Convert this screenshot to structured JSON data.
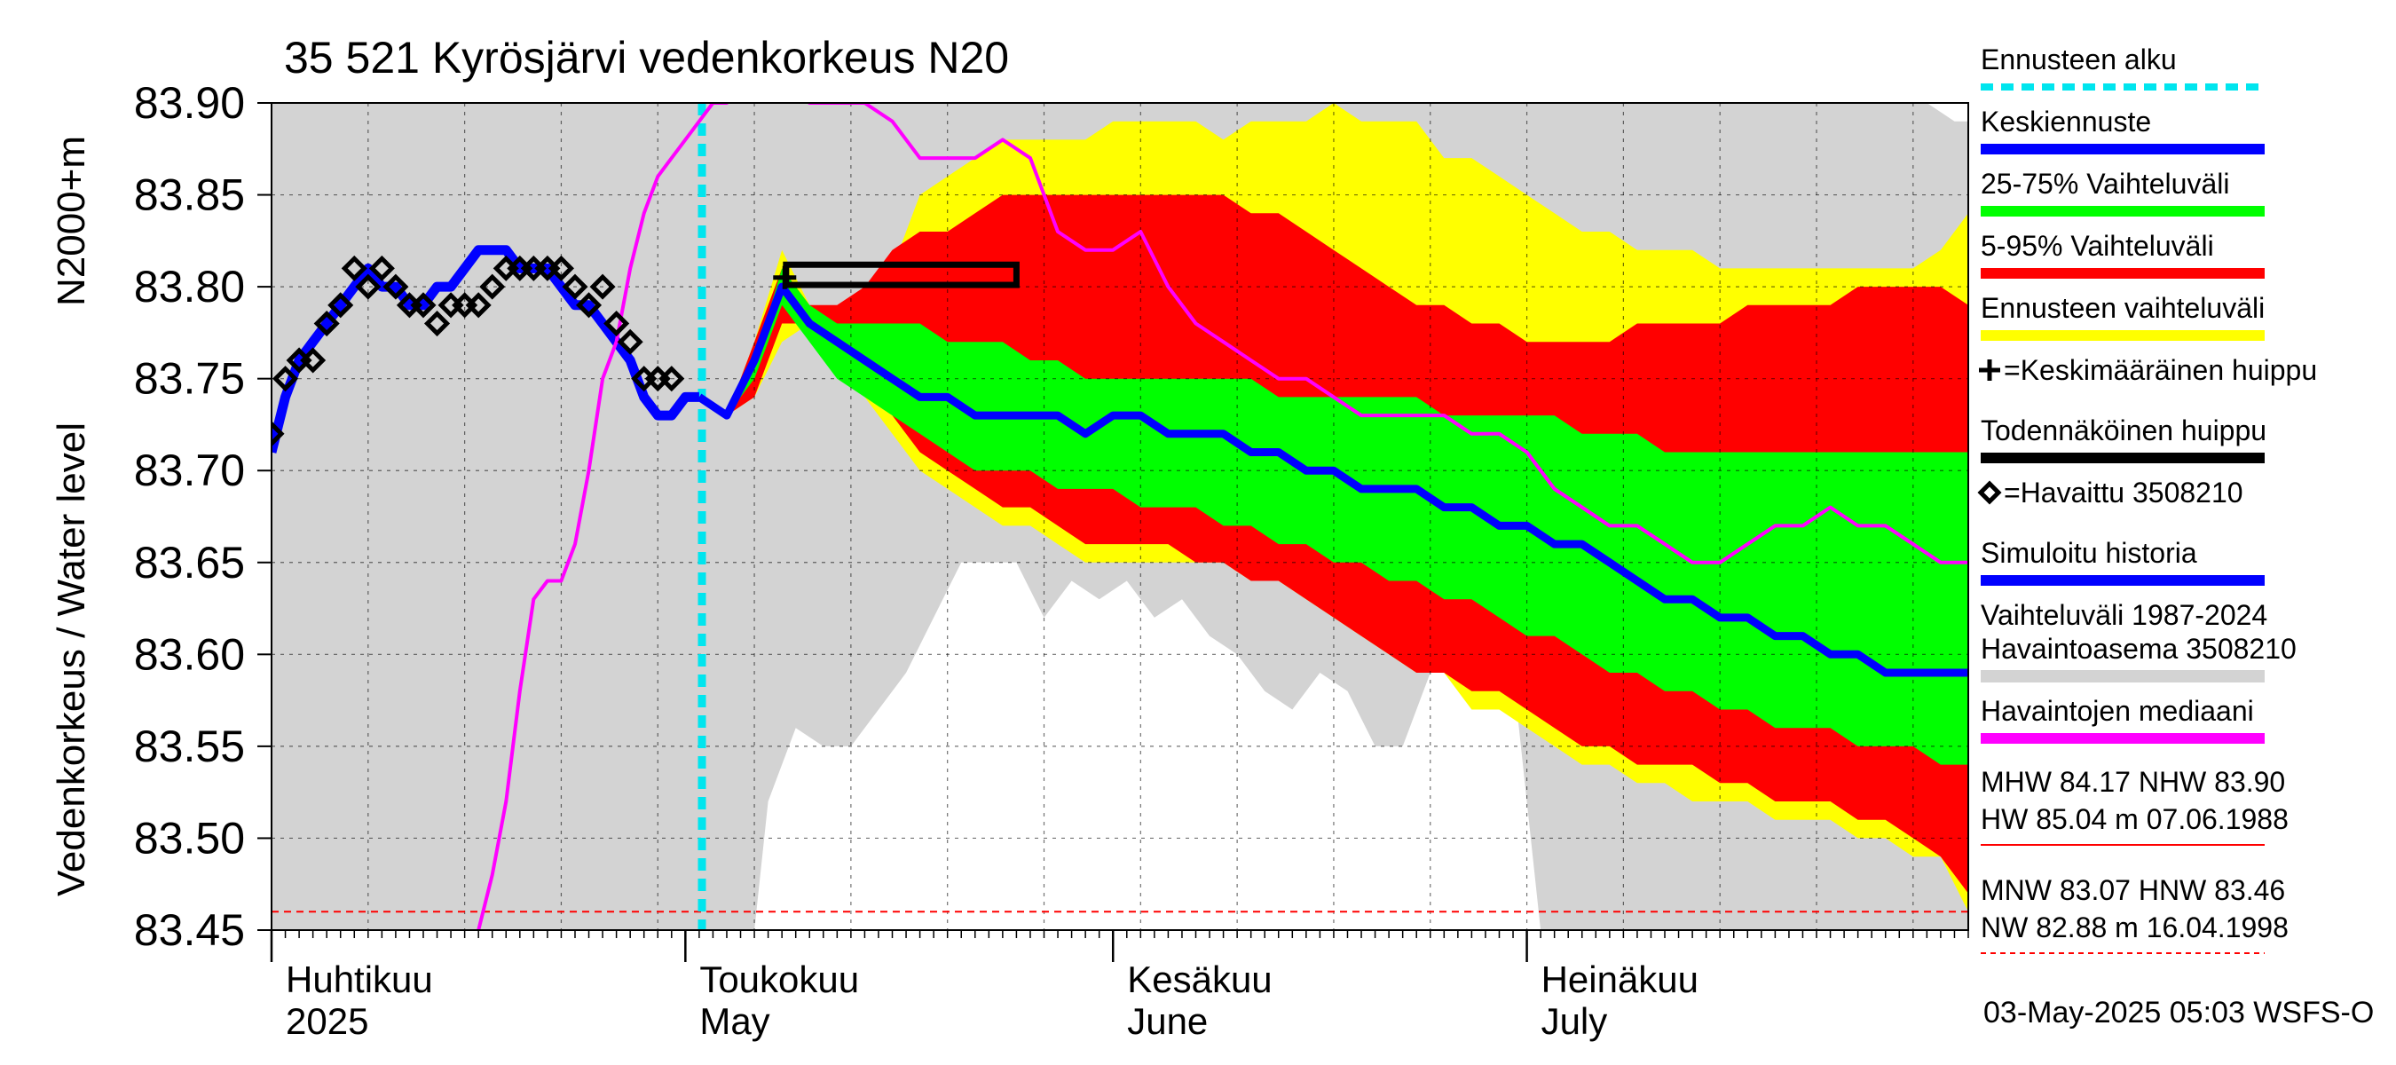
{
  "chart_data": {
    "type": "area",
    "title": "35 521 Kyrösjärvi vedenkorkeus N20",
    "ylabel": "Vedenkorkeus / Water level",
    "ylabel_unit": "N2000+m",
    "ylim": [
      83.45,
      83.9
    ],
    "y_ticks": [
      "83.45",
      "83.50",
      "83.55",
      "83.60",
      "83.65",
      "83.70",
      "83.75",
      "83.80",
      "83.85",
      "83.90"
    ],
    "x_range_days": [
      0,
      123
    ],
    "x_month_labels": [
      {
        "day": 0,
        "fi": "Huhtikuu",
        "en": "2025"
      },
      {
        "day": 30,
        "fi": "Toukokuu",
        "en": "May"
      },
      {
        "day": 61,
        "fi": "Kesäkuu",
        "en": "June"
      },
      {
        "day": 91,
        "fi": "Heinäkuu",
        "en": "July"
      }
    ],
    "forecast_start_day": 31.2,
    "footer": "03-May-2025 05:03 WSFS-O",
    "thresholds": {
      "nhw": 83.9,
      "hnw": 83.46
    },
    "legend": [
      {
        "label": "Ennusteen alku",
        "color": "#00e5ee",
        "style": "dashed"
      },
      {
        "label": "Keskiennuste",
        "color": "#0000ff",
        "style": "line"
      },
      {
        "label": "25-75% Vaihteluväli",
        "color": "#00ff00",
        "style": "line"
      },
      {
        "label": "5-95% Vaihteluväli",
        "color": "#ff0000",
        "style": "line"
      },
      {
        "label": "Ennusteen vaihteluväli",
        "color": "#ffff00",
        "style": "line"
      },
      {
        "label": "=Keskimääräinen huippu",
        "color": "#000000",
        "style": "plus"
      },
      {
        "label": "Todennäköinen huippu",
        "color": "#000000",
        "style": "line"
      },
      {
        "label": "=Havaittu 3508210",
        "color": "#000000",
        "style": "diamond"
      },
      {
        "label": "Simuloitu historia",
        "color": "#0000ff",
        "style": "line"
      },
      {
        "label": "Vaihteluväli 1987-2024\n Havaintoasema 3508210",
        "color": "#d3d3d3",
        "style": "line"
      },
      {
        "label": "Havaintojen mediaani",
        "color": "#ff00ff",
        "style": "line"
      }
    ],
    "stats": [
      {
        "text": "MHW  84.17 NHW  83.90\nHW  85.04 m 07.06.1988",
        "color": "#ff0000",
        "style": "solid"
      },
      {
        "text": "MNW  83.07 HNW  83.46\nNW  82.88 m 16.04.1998",
        "color": "#ff0000",
        "style": "dashed"
      }
    ],
    "history_band": {
      "x": [
        0,
        30,
        31,
        33,
        35,
        36,
        38,
        40,
        42,
        44,
        46,
        48,
        50,
        52,
        54,
        56,
        58,
        60,
        62,
        64,
        66,
        68,
        70,
        72,
        74,
        76,
        78,
        80,
        82,
        84,
        86,
        88,
        90,
        92,
        94,
        96,
        98,
        100,
        102,
        104,
        106,
        108,
        110,
        112,
        114,
        116,
        118,
        120,
        122,
        123
      ],
      "upper": [
        83.9,
        83.9,
        83.9,
        83.9,
        83.9,
        83.9,
        83.9,
        83.9,
        83.9,
        83.9,
        83.9,
        83.9,
        83.9,
        83.9,
        83.9,
        83.9,
        83.9,
        83.9,
        83.9,
        83.9,
        83.9,
        83.9,
        83.9,
        83.9,
        83.9,
        83.9,
        83.9,
        83.9,
        83.9,
        83.9,
        83.9,
        83.9,
        83.9,
        83.9,
        83.9,
        83.9,
        83.9,
        83.9,
        83.9,
        83.9,
        83.9,
        83.9,
        83.9,
        83.9,
        83.9,
        83.9,
        83.9,
        83.9,
        83.89,
        83.89
      ],
      "lower": [
        83.45,
        83.45,
        83.45,
        83.45,
        83.45,
        83.52,
        83.56,
        83.55,
        83.55,
        83.57,
        83.59,
        83.62,
        83.65,
        83.65,
        83.65,
        83.62,
        83.64,
        83.63,
        83.64,
        83.62,
        83.63,
        83.61,
        83.6,
        83.58,
        83.57,
        83.59,
        83.58,
        83.55,
        83.55,
        83.59,
        83.59,
        83.59,
        83.59,
        83.45,
        83.45,
        83.45,
        83.45,
        83.45,
        83.45,
        83.45,
        83.45,
        83.45,
        83.45,
        83.45,
        83.45,
        83.45,
        83.45,
        83.45,
        83.45,
        83.45
      ]
    },
    "forecast_x": [
      31,
      33,
      35,
      37,
      39,
      41,
      43,
      45,
      47,
      49,
      51,
      53,
      55,
      57,
      59,
      61,
      63,
      65,
      67,
      69,
      71,
      73,
      75,
      77,
      79,
      81,
      83,
      85,
      87,
      89,
      91,
      93,
      95,
      97,
      99,
      101,
      103,
      105,
      107,
      109,
      111,
      113,
      115,
      117,
      119,
      121,
      123
    ],
    "bands": [
      {
        "name": "Ennusteen vaihteluväli",
        "color": "#ffff00",
        "upper": [
          83.74,
          83.73,
          83.77,
          83.82,
          83.79,
          83.78,
          83.79,
          83.81,
          83.85,
          83.86,
          83.87,
          83.88,
          83.88,
          83.88,
          83.88,
          83.89,
          83.89,
          83.89,
          83.89,
          83.88,
          83.89,
          83.89,
          83.89,
          83.9,
          83.89,
          83.89,
          83.89,
          83.87,
          83.87,
          83.86,
          83.85,
          83.84,
          83.83,
          83.83,
          83.82,
          83.82,
          83.82,
          83.81,
          83.81,
          83.81,
          83.81,
          83.81,
          83.81,
          83.81,
          83.81,
          83.82,
          83.84
        ],
        "lower": [
          83.74,
          83.73,
          83.74,
          83.77,
          83.78,
          83.76,
          83.74,
          83.72,
          83.7,
          83.69,
          83.68,
          83.67,
          83.67,
          83.66,
          83.65,
          83.65,
          83.65,
          83.65,
          83.65,
          83.65,
          83.64,
          83.64,
          83.63,
          83.62,
          83.61,
          83.6,
          83.59,
          83.59,
          83.57,
          83.57,
          83.56,
          83.55,
          83.54,
          83.54,
          83.53,
          83.53,
          83.52,
          83.52,
          83.52,
          83.51,
          83.51,
          83.51,
          83.5,
          83.5,
          83.49,
          83.49,
          83.46
        ]
      },
      {
        "name": "5-95% Vaihteluväli",
        "color": "#ff0000",
        "upper": [
          83.74,
          83.73,
          83.77,
          83.81,
          83.79,
          83.79,
          83.8,
          83.82,
          83.83,
          83.83,
          83.84,
          83.85,
          83.85,
          83.85,
          83.85,
          83.85,
          83.85,
          83.85,
          83.85,
          83.85,
          83.84,
          83.84,
          83.83,
          83.82,
          83.81,
          83.8,
          83.79,
          83.79,
          83.78,
          83.78,
          83.77,
          83.77,
          83.77,
          83.77,
          83.78,
          83.78,
          83.78,
          83.78,
          83.79,
          83.79,
          83.79,
          83.79,
          83.8,
          83.8,
          83.8,
          83.8,
          83.79
        ],
        "lower": [
          83.74,
          83.73,
          83.74,
          83.78,
          83.78,
          83.76,
          83.75,
          83.73,
          83.71,
          83.7,
          83.69,
          83.68,
          83.68,
          83.67,
          83.66,
          83.66,
          83.66,
          83.66,
          83.65,
          83.65,
          83.64,
          83.64,
          83.63,
          83.62,
          83.61,
          83.6,
          83.59,
          83.59,
          83.58,
          83.58,
          83.57,
          83.56,
          83.55,
          83.55,
          83.54,
          83.54,
          83.54,
          83.53,
          83.53,
          83.52,
          83.52,
          83.52,
          83.51,
          83.51,
          83.5,
          83.49,
          83.47
        ]
      },
      {
        "name": "25-75% Vaihteluväli",
        "color": "#00ff00",
        "upper": [
          83.74,
          83.73,
          83.76,
          83.81,
          83.79,
          83.78,
          83.78,
          83.78,
          83.78,
          83.77,
          83.77,
          83.77,
          83.76,
          83.76,
          83.75,
          83.75,
          83.75,
          83.75,
          83.75,
          83.75,
          83.75,
          83.74,
          83.74,
          83.74,
          83.74,
          83.74,
          83.74,
          83.73,
          83.73,
          83.73,
          83.73,
          83.73,
          83.72,
          83.72,
          83.72,
          83.71,
          83.71,
          83.71,
          83.71,
          83.71,
          83.71,
          83.71,
          83.71,
          83.71,
          83.71,
          83.71,
          83.71
        ],
        "lower": [
          83.74,
          83.73,
          83.75,
          83.79,
          83.77,
          83.75,
          83.74,
          83.73,
          83.72,
          83.71,
          83.7,
          83.7,
          83.7,
          83.69,
          83.69,
          83.69,
          83.68,
          83.68,
          83.68,
          83.67,
          83.67,
          83.66,
          83.66,
          83.65,
          83.65,
          83.64,
          83.64,
          83.63,
          83.63,
          83.62,
          83.61,
          83.61,
          83.6,
          83.59,
          83.59,
          83.58,
          83.58,
          83.57,
          83.57,
          83.56,
          83.56,
          83.56,
          83.55,
          83.55,
          83.55,
          83.54,
          83.54
        ]
      }
    ],
    "series": [
      {
        "name": "Simuloitu historia",
        "color": "#0000ff",
        "x": [
          0,
          1,
          2,
          3,
          4,
          5,
          6,
          7,
          8,
          9,
          10,
          11,
          12,
          13,
          14,
          15,
          16,
          17,
          18,
          19,
          20,
          21,
          22,
          23,
          24,
          25,
          26,
          27,
          28,
          29,
          30,
          31
        ],
        "values": [
          83.71,
          83.74,
          83.76,
          83.77,
          83.78,
          83.79,
          83.8,
          83.81,
          83.8,
          83.8,
          83.79,
          83.79,
          83.8,
          83.8,
          83.81,
          83.82,
          83.82,
          83.82,
          83.81,
          83.81,
          83.81,
          83.8,
          83.79,
          83.79,
          83.78,
          83.77,
          83.76,
          83.74,
          83.73,
          83.73,
          83.74,
          83.74
        ]
      },
      {
        "name": "Keskiennuste",
        "color": "#0000ff",
        "x": [
          31,
          33,
          35,
          37,
          39,
          41,
          43,
          45,
          47,
          49,
          51,
          53,
          55,
          57,
          59,
          61,
          63,
          65,
          67,
          69,
          71,
          73,
          75,
          77,
          79,
          81,
          83,
          85,
          87,
          89,
          91,
          93,
          95,
          97,
          99,
          101,
          103,
          105,
          107,
          109,
          111,
          113,
          115,
          117,
          119,
          121,
          123
        ],
        "values": [
          83.74,
          83.73,
          83.76,
          83.8,
          83.78,
          83.77,
          83.76,
          83.75,
          83.74,
          83.74,
          83.73,
          83.73,
          83.73,
          83.73,
          83.72,
          83.73,
          83.73,
          83.72,
          83.72,
          83.72,
          83.71,
          83.71,
          83.7,
          83.7,
          83.69,
          83.69,
          83.69,
          83.68,
          83.68,
          83.67,
          83.67,
          83.66,
          83.66,
          83.65,
          83.64,
          83.63,
          83.63,
          83.62,
          83.62,
          83.61,
          83.61,
          83.6,
          83.6,
          83.59,
          83.59,
          83.59,
          83.59
        ]
      },
      {
        "name": "Havaintojen mediaani",
        "color": "#ff00ff",
        "x": [
          15,
          16,
          17,
          18,
          19,
          20,
          21,
          22,
          23,
          24,
          25,
          26,
          27,
          28,
          29,
          30,
          31,
          32,
          33,
          35,
          37,
          39,
          41,
          43,
          45,
          47,
          49,
          51,
          53,
          55,
          57,
          59,
          61,
          63,
          65,
          67,
          69,
          71,
          73,
          75,
          77,
          79,
          81,
          83,
          85,
          87,
          89,
          91,
          93,
          95,
          97,
          99,
          101,
          103,
          105,
          107,
          109,
          111,
          113,
          115,
          117,
          119,
          121,
          123
        ],
        "values": [
          83.45,
          83.48,
          83.52,
          83.58,
          83.63,
          83.64,
          83.64,
          83.66,
          83.7,
          83.75,
          83.77,
          83.81,
          83.84,
          83.86,
          83.87,
          83.88,
          83.89,
          83.9,
          83.9,
          83.91,
          83.91,
          83.9,
          83.9,
          83.9,
          83.89,
          83.87,
          83.87,
          83.87,
          83.88,
          83.87,
          83.83,
          83.82,
          83.82,
          83.83,
          83.8,
          83.78,
          83.77,
          83.76,
          83.75,
          83.75,
          83.74,
          83.73,
          83.73,
          83.73,
          83.73,
          83.72,
          83.72,
          83.71,
          83.69,
          83.68,
          83.67,
          83.67,
          83.66,
          83.65,
          83.65,
          83.66,
          83.67,
          83.67,
          83.68,
          83.67,
          83.67,
          83.66,
          83.65,
          83.65
        ]
      }
    ],
    "observed": {
      "name": "Havaittu 3508210",
      "x": [
        0,
        1,
        2,
        3,
        4,
        5,
        6,
        7,
        8,
        9,
        10,
        11,
        12,
        13,
        14,
        15,
        16,
        17,
        18,
        19,
        20,
        21,
        22,
        23,
        24,
        25,
        26,
        27,
        28,
        29
      ],
      "values": [
        83.72,
        83.75,
        83.76,
        83.76,
        83.78,
        83.79,
        83.81,
        83.8,
        83.81,
        83.8,
        83.79,
        83.79,
        83.78,
        83.79,
        83.79,
        83.79,
        83.8,
        83.81,
        83.81,
        83.81,
        83.81,
        83.81,
        83.8,
        83.79,
        83.8,
        83.78,
        83.77,
        83.75,
        83.75,
        83.75
      ]
    },
    "mean_peak": {
      "day": 37.2,
      "value": 83.805
    },
    "probable_peak": {
      "x0": 37.3,
      "x1": 54,
      "y0": 83.801,
      "y1": 83.812
    }
  }
}
